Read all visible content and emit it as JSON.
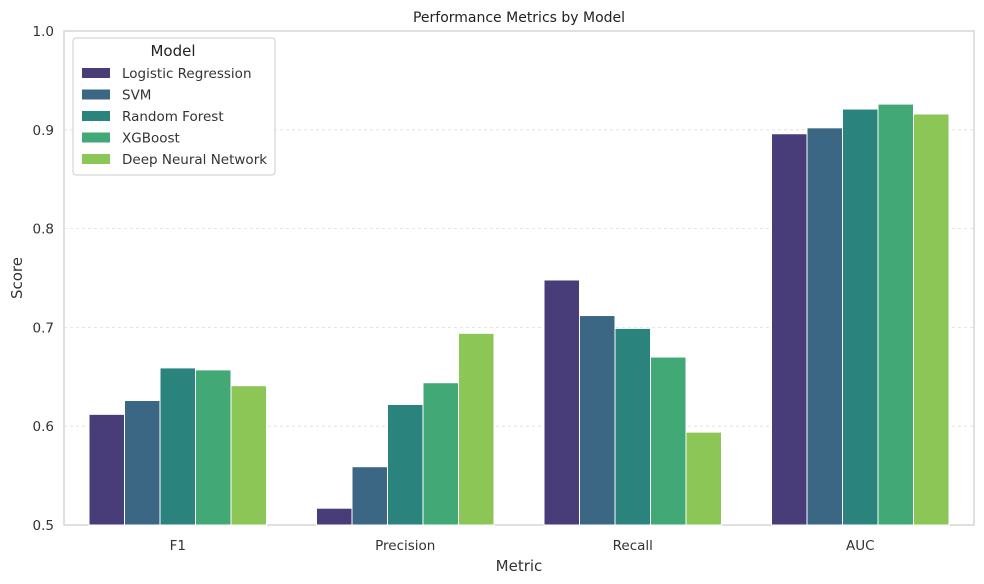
{
  "chart_data": {
    "type": "bar",
    "title": "Performance Metrics by Model",
    "xlabel": "Metric",
    "ylabel": "Score",
    "ylim": [
      0.5,
      1.0
    ],
    "yticks": [
      "0.5",
      "0.6",
      "0.7",
      "0.8",
      "0.9",
      "1.0"
    ],
    "grid": "horizontal dashed",
    "legend": {
      "title": "Model",
      "placement": "upper-left"
    },
    "categories": [
      "F1",
      "Precision",
      "Recall",
      "AUC"
    ],
    "series": [
      {
        "name": "Logistic Regression",
        "color": "#483D78",
        "values": [
          0.612,
          0.517,
          0.748,
          0.896
        ]
      },
      {
        "name": "SVM",
        "color": "#3B6784",
        "values": [
          0.626,
          0.559,
          0.712,
          0.902
        ]
      },
      {
        "name": "Random Forest",
        "color": "#2A847D",
        "values": [
          0.659,
          0.622,
          0.699,
          0.921
        ]
      },
      {
        "name": "XGBoost",
        "color": "#42A875",
        "values": [
          0.657,
          0.644,
          0.67,
          0.926
        ]
      },
      {
        "name": "Deep Neural Network",
        "color": "#8BC657",
        "values": [
          0.641,
          0.694,
          0.594,
          0.916
        ]
      }
    ]
  }
}
